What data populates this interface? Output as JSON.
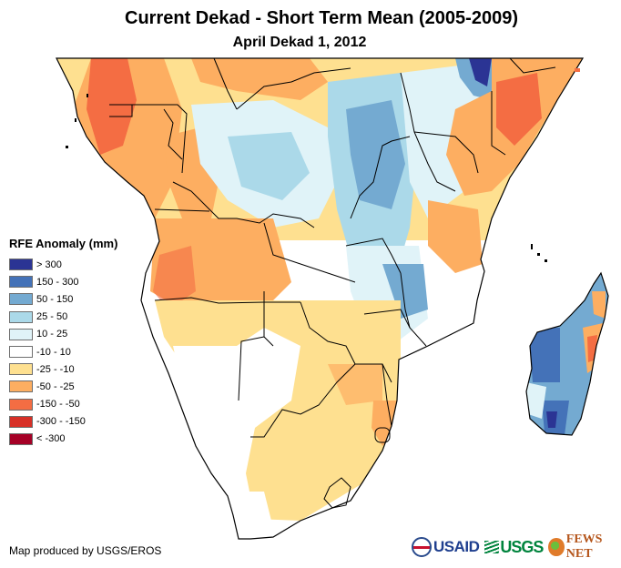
{
  "title": "Current Dekad - Short Term Mean (2005-2009)",
  "subtitle": "April Dekad 1, 2012",
  "legend": {
    "title": "RFE Anomaly (mm)",
    "items": [
      {
        "label": "> 300",
        "color": "#2b3494"
      },
      {
        "label": "150 - 300",
        "color": "#4472b8"
      },
      {
        "label": "50 - 150",
        "color": "#74aad1"
      },
      {
        "label": "25 - 50",
        "color": "#abd9e9"
      },
      {
        "label": "10 - 25",
        "color": "#e0f3f8"
      },
      {
        "label": "-10 - 10",
        "color": "#ffffff"
      },
      {
        "label": "-25 - -10",
        "color": "#fee090"
      },
      {
        "label": "-50 - -25",
        "color": "#fdae61"
      },
      {
        "label": "-150 - -50",
        "color": "#f46d43"
      },
      {
        "label": "-300 - -150",
        "color": "#d73027"
      },
      {
        "label": "< -300",
        "color": "#a50026"
      }
    ]
  },
  "credit": "Map produced by USGS/EROS",
  "logos": {
    "usaid": "USAID",
    "usgs": "USGS",
    "fews": "FEWS NET"
  },
  "map": {
    "region": "Southern and Eastern Africa",
    "regions_summary": [
      {
        "area": "Gabon / Equatorial Guinea coast",
        "class": "-150 - -50"
      },
      {
        "area": "Congo / Cameroon interior",
        "class": "-50 - -25"
      },
      {
        "area": "Central DRC",
        "class": "25 - 50"
      },
      {
        "area": "Uganda / Tanzania",
        "class": "50 - 150"
      },
      {
        "area": "Southern Ethiopia",
        "class": "> 300"
      },
      {
        "area": "Kenya / Somalia",
        "class": "-150 - -50"
      },
      {
        "area": "Angola",
        "class": "-50 - -25"
      },
      {
        "area": "Namibia / Botswana",
        "class": "-10 - 10"
      },
      {
        "area": "South Africa / Zimbabwe",
        "class": "-25 - -10"
      },
      {
        "area": "Malawi / N. Mozambique",
        "class": "50 - 150"
      },
      {
        "area": "Madagascar west",
        "class": "150 - 300"
      },
      {
        "area": "Madagascar east coast",
        "class": "-150 - -50"
      }
    ]
  }
}
